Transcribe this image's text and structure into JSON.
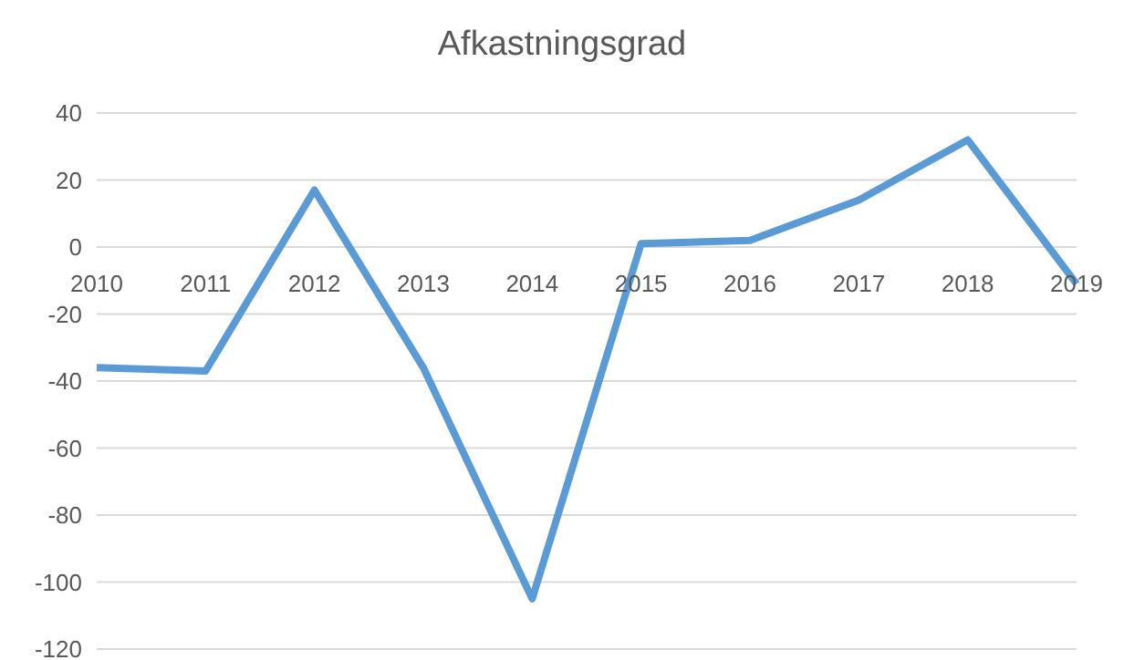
{
  "chart_data": {
    "type": "line",
    "title": "Afkastningsgrad",
    "categories": [
      "2010",
      "2011",
      "2012",
      "2013",
      "2014",
      "2015",
      "2016",
      "2017",
      "2018",
      "2019"
    ],
    "series": [
      {
        "color": "#5b9bd5",
        "values": [
          -36,
          -37,
          17,
          -36,
          -105,
          1,
          2,
          14,
          32,
          -11
        ]
      }
    ],
    "ylim": [
      -120,
      40
    ],
    "yticks": [
      -120,
      -100,
      -80,
      -60,
      -40,
      -20,
      0,
      20,
      40
    ],
    "grid": "y",
    "legend": false,
    "marker": "none",
    "line_style": "solid"
  }
}
